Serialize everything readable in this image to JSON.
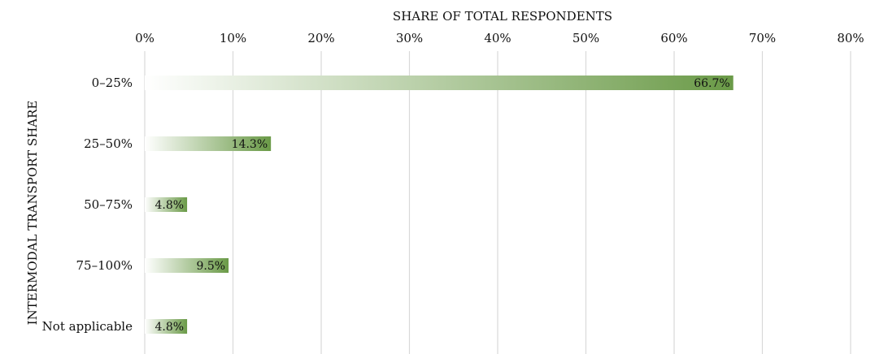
{
  "chart_data": {
    "type": "bar",
    "orientation": "horizontal",
    "categories": [
      "0–25%",
      "25–50%",
      "50–75%",
      "75–100%",
      "Not applicable"
    ],
    "values": [
      66.7,
      14.3,
      4.8,
      9.5,
      4.8
    ],
    "data_labels": [
      "66.7%",
      "14.3%",
      "4.8%",
      "9.5%",
      "4.8%"
    ],
    "xlabel": "SHARE OF TOTAL RESPONDENTS",
    "ylabel": "INTERMODAL TRANSPORT SHARE",
    "xlim": [
      0,
      80
    ],
    "xticks": [
      0,
      10,
      20,
      30,
      40,
      50,
      60,
      70,
      80
    ],
    "xtick_labels": [
      "0%",
      "10%",
      "20%",
      "30%",
      "40%",
      "50%",
      "60%",
      "70%",
      "80%"
    ],
    "x_axis_position": "top",
    "grid": true,
    "legend": "none",
    "colors": {
      "bar_start": "#ffffff",
      "bar_end": "#6a9a47",
      "grid": "#d9d9d9"
    }
  }
}
